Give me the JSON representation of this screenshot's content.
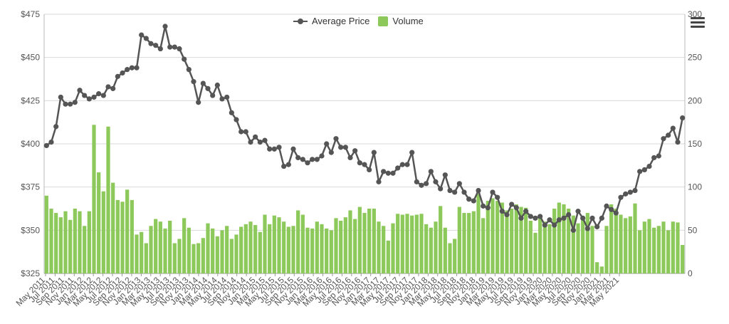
{
  "chart_data": {
    "type": "bar+line",
    "legend": {
      "placement": "top-center",
      "line_label": "Average Price",
      "bar_label": "Volume"
    },
    "colors": {
      "line": "#555555",
      "bars": "#8dc85a",
      "grid": "#d9d9d9",
      "axis_text": "#555555"
    },
    "grid": true,
    "y_left": {
      "ylim": [
        325,
        475
      ],
      "ticks": [
        "$325",
        "$350",
        "$375",
        "$400",
        "$425",
        "$450",
        "$475"
      ]
    },
    "y_right": {
      "ylim": [
        0,
        300
      ],
      "ticks": [
        "0",
        "50",
        "100",
        "150",
        "200",
        "250",
        "300"
      ]
    },
    "x_tick_labels": [
      "May 2011",
      "Jul 2011",
      "Sep 2011",
      "Nov 2011",
      "Jan 2012",
      "Mar 2012",
      "May 2012",
      "Jul 2012",
      "Sep 2012",
      "Nov 2012",
      "Jan 2013",
      "Mar 2013",
      "May 2013",
      "Jul 2013",
      "Sep 2013",
      "Nov 2013",
      "Jan 2014",
      "Mar 2014",
      "May 2014",
      "Jul 2014",
      "Sep 2014",
      "Nov 2014",
      "Jan 2015",
      "Mar 2015",
      "May 2015",
      "Jul 2015",
      "Sep 2015",
      "Nov 2015",
      "Jan 2016",
      "Mar 2016",
      "May 2016",
      "Jul 2016",
      "Sep 2016",
      "Nov 2016",
      "Jan 2017",
      "Mar 2017",
      "May 2017",
      "Jul 2017",
      "Sep 2017",
      "Nov 2017",
      "Jan 2018",
      "Mar 2018",
      "May 2018",
      "Jul 2018",
      "Sep 2018",
      "Nov 2018",
      "Jan 2019",
      "Mar 2019",
      "May 2019",
      "Jul 2019",
      "Sep 2019",
      "Nov 2019",
      "Jan 2020",
      "Mar 2020",
      "May 2020",
      "Jul 2020",
      "Sep 2020",
      "Nov 2020",
      "Jan 2021",
      "Mar 2021",
      "May 2021"
    ],
    "price": [
      399,
      401,
      410,
      427,
      423,
      423,
      424,
      431,
      428,
      426,
      427,
      429,
      428,
      433,
      432,
      439,
      441,
      443,
      444,
      444,
      463,
      461,
      458,
      457,
      455,
      468,
      456,
      456,
      455,
      449,
      443,
      436,
      424,
      435,
      432,
      428,
      434,
      426,
      427,
      418,
      414,
      407,
      407,
      401,
      404,
      401,
      402,
      397,
      397,
      398,
      387,
      388,
      397,
      392,
      391,
      389,
      391,
      391,
      393,
      400,
      395,
      403,
      398,
      398,
      392,
      396,
      389,
      388,
      385,
      395,
      378,
      384,
      383,
      383,
      386,
      388,
      388,
      395,
      378,
      376,
      377,
      384,
      378,
      374,
      382,
      373,
      372,
      377,
      372,
      368,
      367,
      373,
      364,
      363,
      372,
      369,
      361,
      359,
      365,
      363,
      357,
      361,
      358,
      357,
      358,
      353,
      356,
      353,
      356,
      357,
      359,
      350,
      361,
      357,
      351,
      357,
      352,
      357,
      364,
      362,
      360,
      369,
      371,
      372,
      373,
      384,
      385,
      387,
      392,
      393,
      403,
      405,
      409,
      401,
      415
    ],
    "volume": [
      90,
      75,
      70,
      65,
      72,
      62,
      75,
      72,
      55,
      72,
      172,
      117,
      95,
      170,
      105,
      85,
      83,
      97,
      85,
      45,
      48,
      35,
      55,
      63,
      60,
      52,
      61,
      35,
      40,
      64,
      53,
      34,
      35,
      41,
      58,
      52,
      43,
      50,
      55,
      40,
      45,
      54,
      57,
      60,
      56,
      48,
      68,
      57,
      67,
      65,
      60,
      54,
      55,
      73,
      68,
      53,
      52,
      60,
      57,
      52,
      50,
      64,
      61,
      65,
      73,
      63,
      77,
      70,
      75,
      75,
      60,
      55,
      38,
      58,
      69,
      68,
      69,
      67,
      68,
      69,
      57,
      53,
      60,
      78,
      53,
      35,
      40,
      77,
      70,
      70,
      72,
      92,
      64,
      84,
      87,
      84,
      82,
      73,
      75,
      80,
      77,
      76,
      61,
      47,
      68,
      60,
      57,
      75,
      82,
      80,
      75,
      67,
      58,
      65,
      70,
      55,
      13,
      8,
      55,
      80,
      75,
      68,
      64,
      66,
      81,
      50,
      60,
      63,
      53,
      55,
      60,
      50,
      60,
      59,
      33
    ]
  }
}
